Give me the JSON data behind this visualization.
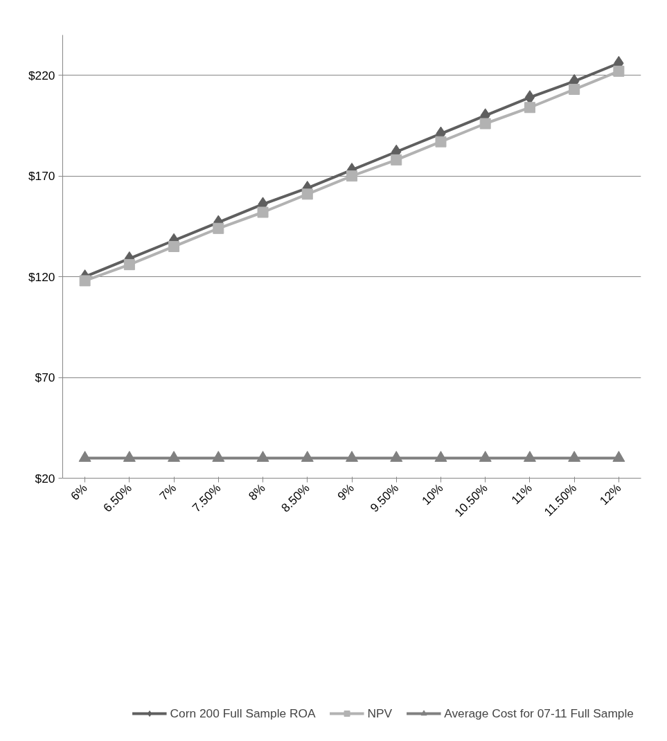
{
  "chart_data": {
    "type": "line",
    "categories": [
      "6%",
      "6.50%",
      "7%",
      "7.50%",
      "8%",
      "8.50%",
      "9%",
      "9.50%",
      "10%",
      "10.50%",
      "11%",
      "11.50%",
      "12%"
    ],
    "series": [
      {
        "name": "Corn 200 Full Sample ROA",
        "color": "#5f5f5f",
        "marker": "diamond",
        "values": [
          120,
          129,
          138,
          147,
          156,
          164,
          173,
          182,
          191,
          200,
          209,
          217,
          226
        ]
      },
      {
        "name": "NPV",
        "color": "#b2b2b2",
        "marker": "square",
        "values": [
          118,
          126,
          135,
          144,
          152,
          161,
          170,
          178,
          187,
          196,
          204,
          213,
          222
        ]
      },
      {
        "name": "Average Cost for 07-11 Full Sample",
        "color": "#808080",
        "marker": "triangle",
        "values": [
          30,
          30,
          30,
          30,
          30,
          30,
          30,
          30,
          30,
          30,
          30,
          30,
          30
        ]
      }
    ],
    "ylim": [
      20,
      240
    ],
    "yticks": [
      {
        "value": 20,
        "label": "$20"
      },
      {
        "value": 70,
        "label": "$70"
      },
      {
        "value": 120,
        "label": "$120"
      },
      {
        "value": 170,
        "label": "$170"
      },
      {
        "value": 220,
        "label": "$220"
      }
    ],
    "grid": "y",
    "legend": "bottom",
    "line_style": "solid"
  }
}
